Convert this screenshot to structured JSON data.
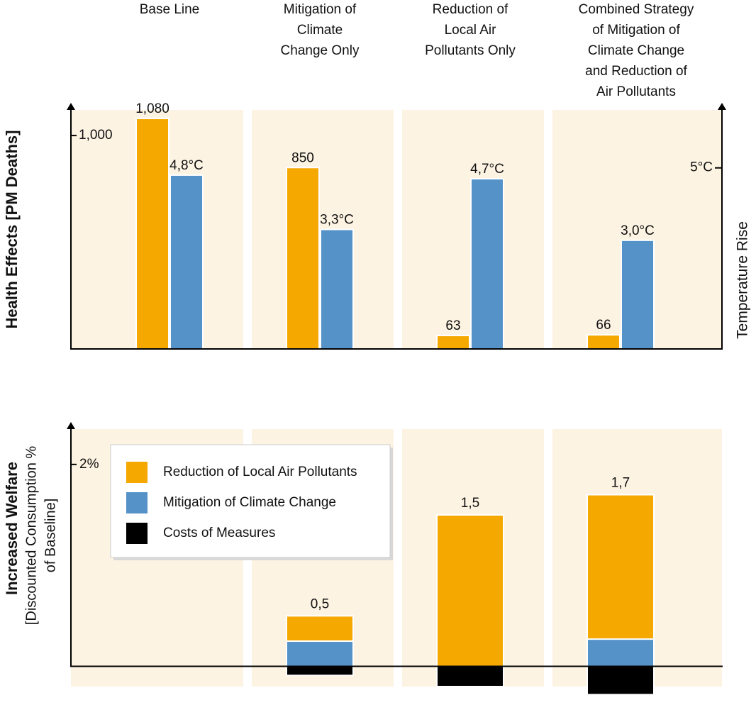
{
  "chart_data": [
    {
      "type": "bar",
      "categories": [
        [
          "Base Line"
        ],
        [
          "Mitigation of",
          "Climate",
          "Change Only"
        ],
        [
          "Reduction of",
          "Local Air",
          "Pollutants Only"
        ],
        [
          "Combined Strategy",
          "of Mitigation of",
          "Climate Change",
          "and Reduction of",
          "Air Pollutants"
        ]
      ],
      "ylabel": "Health Effects [PM Deaths]",
      "y2label": "Temperature Rise",
      "ylim": [
        0,
        1120
      ],
      "yticks": [
        {
          "value": 1000,
          "label": "1,000"
        }
      ],
      "y2lim": [
        0,
        6.6
      ],
      "y2ticks": [
        {
          "value": 5,
          "label": "5°C"
        }
      ],
      "series": [
        {
          "color": "#f5a800",
          "values": [
            1080,
            850,
            63,
            66
          ],
          "value_labels": [
            "1,080",
            "850",
            "63",
            "66"
          ]
        },
        {
          "color": "#5592c8",
          "axis": "y2",
          "values": [
            4.8,
            3.3,
            4.7,
            3.0
          ],
          "value_labels": [
            "4,8°C",
            "3,3°C",
            "4,7°C",
            "3,0°C"
          ]
        }
      ]
    },
    {
      "type": "stacked_bar",
      "ylabel_lines": [
        "Increased Welfare",
        "[Discounted Consumption %",
        "of Baseline]"
      ],
      "ylim": [
        -0.2,
        2.35
      ],
      "yticks": [
        {
          "value": 2,
          "label": "2%"
        }
      ],
      "series": [
        {
          "name": "Reduction of Local Air Pollutants",
          "color": "#f5a800",
          "values": [
            null,
            0.25,
            1.5,
            1.43
          ]
        },
        {
          "name": "Mitigation of Climate Change",
          "color": "#5592c8",
          "values": [
            null,
            0.25,
            0,
            0.27
          ]
        },
        {
          "name": "Costs of Measures",
          "color": "#000000",
          "values": [
            null,
            -0.09,
            -0.2,
            -0.28
          ]
        }
      ],
      "totals": [
        null,
        0.5,
        1.5,
        1.7
      ],
      "total_labels": [
        null,
        "0,5",
        "1,5",
        "1,7"
      ]
    }
  ]
}
